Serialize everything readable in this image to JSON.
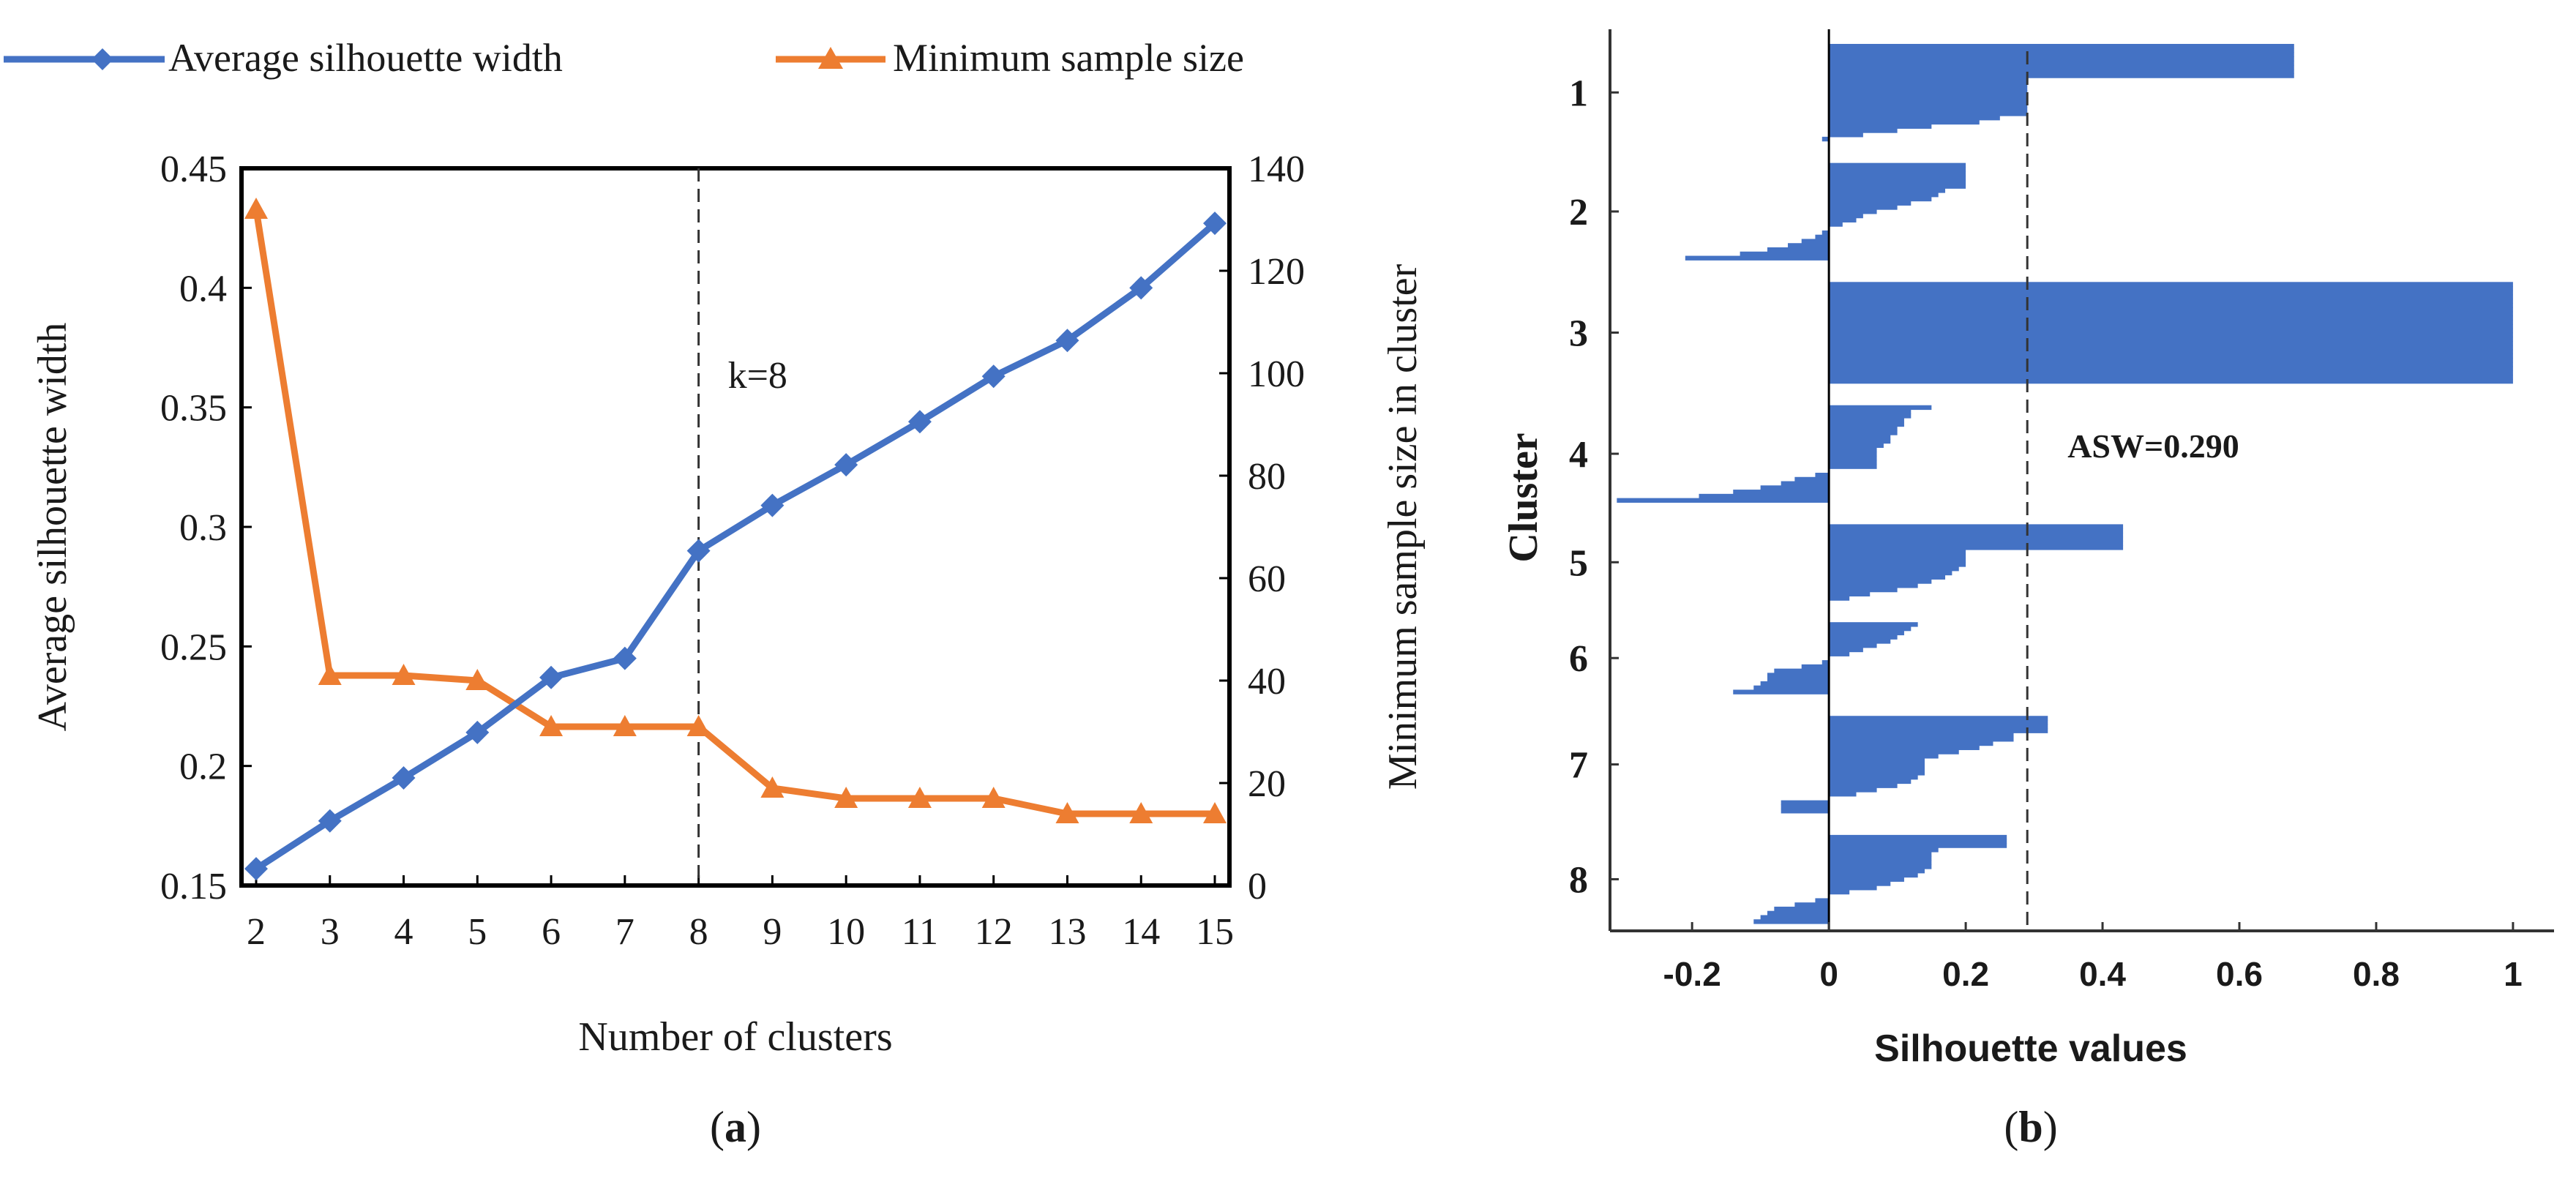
{
  "colors": {
    "blue": "#4472C4",
    "orange": "#ED7D31",
    "axis": "#000000"
  },
  "legend": {
    "series1_label": "Average silhouette width",
    "series2_label": "Minimum sample size"
  },
  "panel_a": {
    "label_open": "(",
    "label_letter": "a",
    "label_close": ")"
  },
  "panel_b": {
    "label_open": "(",
    "label_letter": "b",
    "label_close": ")"
  },
  "chart_data": [
    {
      "type": "line",
      "xlabel": "Number of clusters",
      "ylabel": "Average silhouette width",
      "y2label": "Minimum sample size in cluster",
      "categories": [
        2,
        3,
        4,
        5,
        6,
        7,
        8,
        9,
        10,
        11,
        12,
        13,
        14,
        15
      ],
      "ylim": [
        0.15,
        0.45
      ],
      "yticks": [
        "0.15",
        "0.2",
        "0.25",
        "0.3",
        "0.35",
        "0.4",
        "0.45"
      ],
      "y2lim": [
        0,
        140
      ],
      "y2ticks": [
        "0",
        "20",
        "40",
        "60",
        "80",
        "100",
        "120",
        "140"
      ],
      "series": [
        {
          "name": "Average silhouette width",
          "axis": "left",
          "marker": "diamond",
          "values": [
            0.157,
            0.177,
            0.195,
            0.214,
            0.237,
            0.245,
            0.29,
            0.309,
            0.326,
            0.344,
            0.363,
            0.378,
            0.4,
            0.427
          ]
        },
        {
          "name": "Minimum sample size",
          "axis": "right",
          "marker": "triangle",
          "values": [
            132,
            41,
            41,
            40,
            31,
            31,
            31,
            19,
            17,
            17,
            17,
            14,
            14,
            14
          ]
        }
      ],
      "vline": {
        "x": 8,
        "label": "k=8"
      }
    },
    {
      "type": "bar",
      "orientation": "horizontal",
      "xlabel": "Silhouette values",
      "ylabel": "Cluster",
      "xlim": [
        -0.32,
        1.06
      ],
      "xticks": [
        "-0.2",
        "0",
        "0.2",
        "0.4",
        "0.6",
        "0.8",
        "1"
      ],
      "yticks": [
        "1",
        "2",
        "3",
        "4",
        "5",
        "6",
        "7",
        "8"
      ],
      "asw": {
        "value": 0.29,
        "label": "ASW=0.290"
      },
      "clusters": [
        {
          "label": "1",
          "values": [
            0.68,
            0.68,
            0.68,
            0.68,
            0.68,
            0.68,
            0.68,
            0.68,
            0.29,
            0.29,
            0.29,
            0.29,
            0.29,
            0.29,
            0.29,
            0.29,
            0.29,
            0.25,
            0.22,
            0.15,
            0.1,
            0.05,
            -0.01
          ]
        },
        {
          "label": "2",
          "values": [
            0.2,
            0.2,
            0.2,
            0.2,
            0.2,
            0.2,
            0.17,
            0.16,
            0.15,
            0.12,
            0.1,
            0.07,
            0.05,
            0.04,
            0.02,
            0.0,
            -0.01,
            -0.02,
            -0.04,
            -0.06,
            -0.09,
            -0.13,
            -0.21
          ]
        },
        {
          "label": "3",
          "values": [
            1.0,
            1.0,
            1.0,
            1.0,
            1.0,
            1.0,
            1.0,
            1.0,
            1.0,
            1.0,
            1.0,
            1.0,
            1.0,
            1.0,
            1.0,
            1.0,
            1.0,
            1.0,
            1.0,
            1.0,
            1.0,
            1.0,
            1.0,
            1.0
          ]
        },
        {
          "label": "4",
          "values": [
            0.15,
            0.12,
            0.12,
            0.11,
            0.11,
            0.1,
            0.1,
            0.09,
            0.09,
            0.08,
            0.07,
            0.07,
            0.07,
            0.07,
            0.07,
            0.0,
            -0.02,
            -0.05,
            -0.07,
            -0.1,
            -0.14,
            -0.19,
            -0.31
          ]
        },
        {
          "label": "5",
          "values": [
            0.43,
            0.43,
            0.43,
            0.43,
            0.43,
            0.43,
            0.2,
            0.2,
            0.2,
            0.2,
            0.19,
            0.18,
            0.17,
            0.15,
            0.13,
            0.1,
            0.06,
            0.03
          ]
        },
        {
          "label": "6",
          "values": [
            0.13,
            0.12,
            0.11,
            0.1,
            0.09,
            0.07,
            0.05,
            0.03,
            0.0,
            -0.01,
            -0.04,
            -0.08,
            -0.09,
            -0.09,
            -0.1,
            -0.11,
            -0.14
          ]
        },
        {
          "label": "7",
          "values": [
            0.32,
            0.32,
            0.32,
            0.32,
            0.27,
            0.27,
            0.24,
            0.22,
            0.19,
            0.16,
            0.14,
            0.14,
            0.14,
            0.14,
            0.13,
            0.12,
            0.1,
            0.07,
            0.04,
            0.0,
            -0.07,
            -0.07,
            -0.07
          ]
        },
        {
          "label": "8",
          "values": [
            0.26,
            0.26,
            0.26,
            0.16,
            0.15,
            0.15,
            0.15,
            0.15,
            0.14,
            0.13,
            0.11,
            0.09,
            0.07,
            0.03,
            0.0,
            -0.02,
            -0.05,
            -0.08,
            -0.09,
            -0.1,
            -0.11
          ]
        }
      ]
    }
  ]
}
